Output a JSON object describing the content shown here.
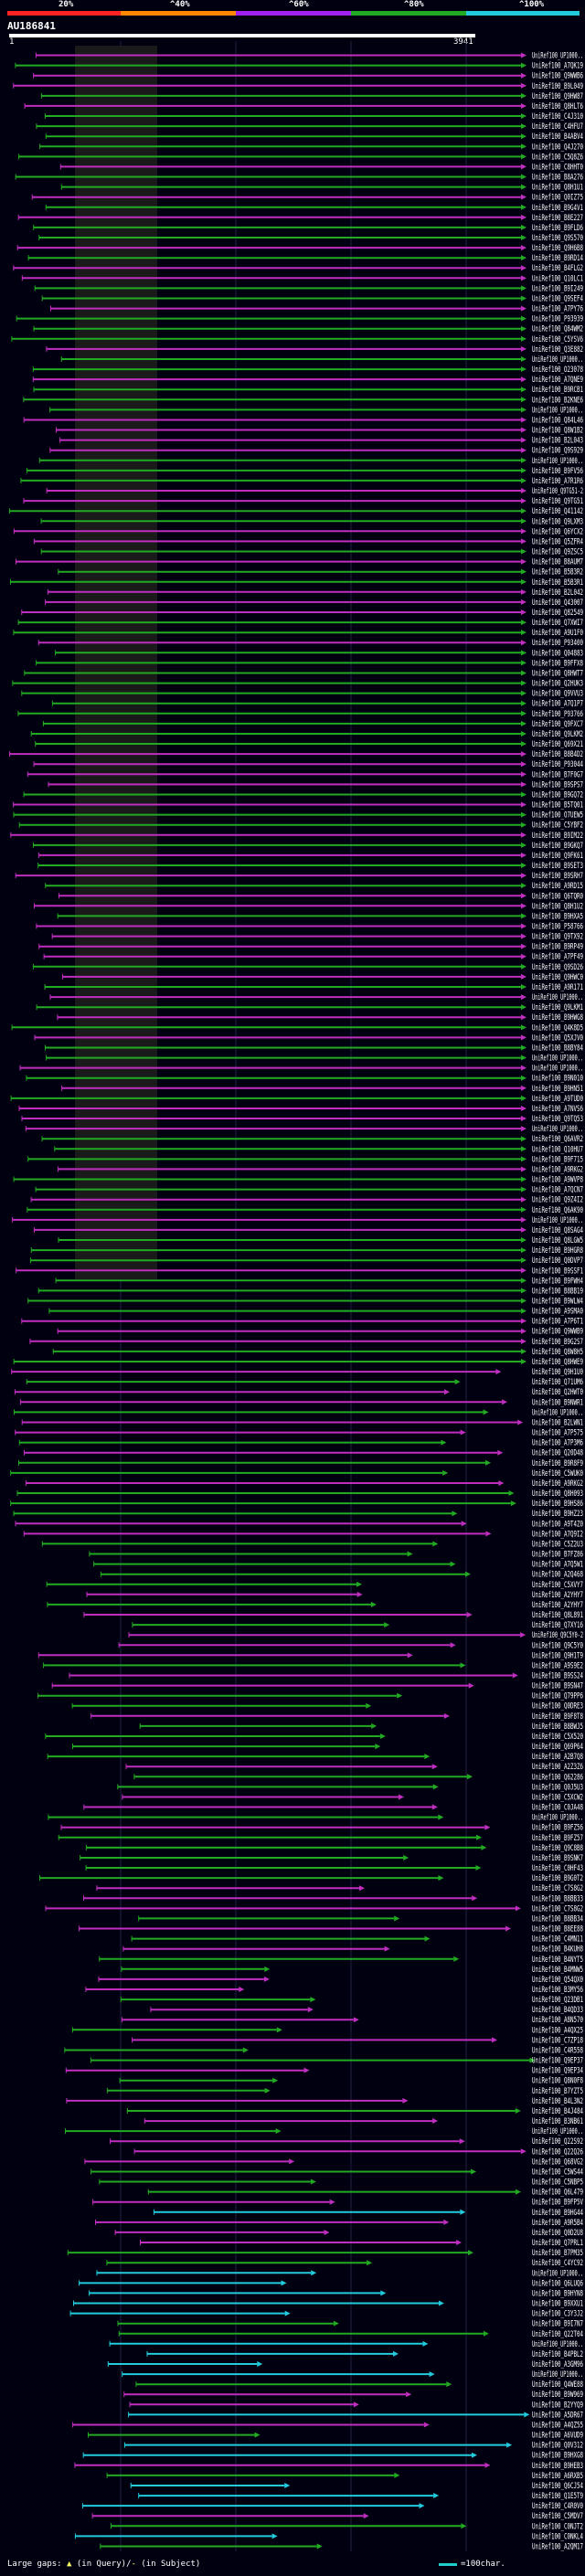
{
  "legend": {
    "labels": [
      "20%",
      "^40%",
      "^60%",
      "^80%",
      "^100%"
    ],
    "colors": [
      "#ff2222",
      "#ff8800",
      "#a020f0",
      "#22aa22",
      "#22ccdd"
    ]
  },
  "query": {
    "name": "AU186841",
    "start": "1",
    "end": "3941"
  },
  "footer": {
    "large_gaps": "Large gaps:",
    "in_query": "(in Query)",
    "slash": "/",
    "in_subject": "(in Subject)",
    "scale_text": "=100char."
  },
  "hits": [
    "UniRef100_UP1000..",
    "UniRef100_A7QK19",
    "UniRef100_Q9WWB6",
    "UniRef100_B9L049",
    "UniRef100_Q9HW87",
    "UniRef100_Q8HLT6",
    "UniRef100_C4J310",
    "UniRef100_C4HFU7",
    "UniRef100_B4ABV4",
    "UniRef100_Q4J270",
    "UniRef100_C5Q8Z6",
    "UniRef100_C8HHT0",
    "UniRef100_B8A276",
    "UniRef100_Q8H1U1",
    "UniRef100_Q0IZ75",
    "UniRef100_B9G4V1",
    "UniRef100_B8E227",
    "UniRef100_B9FLD6",
    "UniRef100_Q9S570",
    "UniRef100_Q9H6B8",
    "UniRef100_B9RD14",
    "UniRef100_B4FLG2",
    "UniRef100_Q10LC1",
    "UniRef100_B9I249",
    "UniRef100_Q9SEF4",
    "UniRef100_A7PY76",
    "UniRef100_P93939",
    "UniRef100_Q84WM2",
    "UniRef100_C5YSV6",
    "UniRef100_Q3E882",
    "UniRef100_UP1000..",
    "UniRef100_O23078",
    "UniRef100_A7QNE9",
    "UniRef100_B9RCB1",
    "UniRef100_B2KNE6",
    "UniRef100_UP1000..",
    "UniRef100_Q84L46",
    "UniRef100_Q8W1B2",
    "UniRef100_B2L043",
    "UniRef100_Q9S929",
    "UniRef100_UP1000..",
    "UniRef100_B9FV56",
    "UniRef100_A7R1R6",
    "UniRef100_Q9TG51-2",
    "UniRef100_Q9TG51",
    "UniRef100_Q41142",
    "UniRef100_Q9LXM3",
    "UniRef100_Q6YCX2",
    "UniRef100_Q5ZFR4",
    "UniRef100_Q9ZSC5",
    "UniRef100_B8AUM7",
    "UniRef100_B5B3R2",
    "UniRef100_B5B3R1",
    "UniRef100_B2L042",
    "UniRef100_Q43007",
    "UniRef100_Q82549",
    "UniRef100_Q7XWI7",
    "UniRef100_A9U1F0",
    "UniRef100_P93400",
    "UniRef100_Q04883",
    "UniRef100_B9FFX8",
    "UniRef100_Q8HWT7",
    "UniRef100_Q2HUK3",
    "UniRef100_Q9VVU3",
    "UniRef100_A7Q1P7",
    "UniRef100_P93766",
    "UniRef100_Q9FXC7",
    "UniRef100_Q9LKM2",
    "UniRef100_Q69X21",
    "UniRef100_B8B4D2",
    "UniRef100_P93044",
    "UniRef100_B7F0G7",
    "UniRef100_B9SPS7",
    "UniRef100_B9GQ72",
    "UniRef100_B5TQ01",
    "UniRef100_O7UEW5",
    "UniRef100_C5YBF2",
    "UniRef100_B9IM22",
    "UniRef100_B9GKQ7",
    "UniRef100_Q9FK61",
    "UniRef100_B9SET3",
    "UniRef100_B9SRH7",
    "UniRef100_A9RD15",
    "UniRef100_Q6TQR0",
    "UniRef100_Q8H1U2",
    "UniRef100_B9HXA5",
    "UniRef100_P58766",
    "UniRef100_Q9TX92",
    "UniRef100_B9RP49",
    "UniRef100_A7PF49",
    "UniRef100_Q9SD26",
    "UniRef100_Q9HWC0",
    "UniRef100_A9R171",
    "UniRef100_UP1000..",
    "UniRef100_Q9LKM1",
    "UniRef100_B9HWG8",
    "UniRef100_Q4K8D5",
    "UniRef100_Q5XJV0",
    "UniRef100_B8BY84",
    "UniRef100_UP1000..",
    "UniRef100_UP1000..",
    "UniRef100_B9N010",
    "UniRef100_B9HN51",
    "UniRef100_A9TUD0",
    "UniRef100_A7NVS6",
    "UniRef100_Q9TQ53",
    "UniRef100_UP1000..",
    "UniRef100_Q6AVR2",
    "UniRef100_Q10HU7",
    "UniRef100_B9F715",
    "UniRef100_A9RKG2",
    "UniRef100_A9WVP8",
    "UniRef100_A7QCN7",
    "UniRef100_Q9Z4I2",
    "UniRef100_Q6AK90",
    "UniRef100_UP1000..",
    "UniRef100_Q8SAG4",
    "UniRef100_Q8LGW5",
    "UniRef100_B9HGR8",
    "UniRef100_Q0DVP7",
    "UniRef100_B9SSF1",
    "UniRef100_B9FWH4",
    "UniRef100_B8BB19",
    "UniRef100_B9WLW4",
    "UniRef100_A9SMA0",
    "UniRef100_A7P6T1",
    "UniRef100_Q9WWB9",
    "UniRef100_B9G2S7",
    "UniRef100_Q8W8H5",
    "UniRef100_Q8HWE9",
    "UniRef100_Q9H1U0",
    "UniRef100_Q71UM6",
    "UniRef100_Q2HWT0",
    "UniRef100_B9NWR1",
    "UniRef100_UP1000..",
    "UniRef100_B2LWN1",
    "UniRef100_A7P575",
    "UniRef100_A7P3M6",
    "UniRef100_Q20D48",
    "UniRef100_B9R8F9",
    "UniRef100_C5WUK0",
    "UniRef100_A9RKG2",
    "UniRef100_Q8H093",
    "UniRef100_B9HS86",
    "UniRef100_B9HZ23",
    "UniRef100_A9T4Z0",
    "UniRef100_A7Q9I2",
    "UniRef100_C5Z2U3",
    "UniRef100_B7FZ86",
    "UniRef100_A7Q5W1",
    "UniRef100_A2Q468",
    "UniRef100_C5XVY7",
    "UniRef100_A2YHY7",
    "UniRef100_A2YHY7",
    "UniRef100_Q8L891",
    "UniRef100_Q7XY16",
    "UniRef100_Q9C5Y0-2",
    "UniRef100_Q9C5Y0",
    "UniRef100_Q9H1T9",
    "UniRef100_A9S9E2",
    "UniRef100_B9SS24",
    "UniRef100_B9SN47",
    "UniRef100_Q79PP6",
    "UniRef100_Q0DRE3",
    "UniRef100_B9F8T8",
    "UniRef100_B8BWJ5",
    "UniRef100_C5X520",
    "UniRef100_Q69P64",
    "UniRef100_A2B7Q8",
    "UniRef100_A2Z3Z6",
    "UniRef100_Q62286",
    "UniRef100_Q0J5U3",
    "UniRef100_C5XCW2",
    "UniRef100_C0JA48",
    "UniRef100_UP1000..",
    "UniRef100_B9FZ56",
    "UniRef100_B9FZ57",
    "UniRef100_Q9C8B8",
    "UniRef100_B9SNK7",
    "UniRef100_C0HF43",
    "UniRef100_B9G0T2",
    "UniRef100_C7S8G2",
    "UniRef100_B8BB33",
    "UniRef100_C7S8G2",
    "UniRef100_B8BB34",
    "UniRef100_B8EE88",
    "UniRef100_C4MN11",
    "UniRef100_B4KUH8",
    "UniRef100_B4NYT5",
    "UniRef100_B4MNW5",
    "UniRef100_Q54QX0",
    "UniRef100_B3MY56",
    "UniRef100_Q23DB1",
    "UniRef100_B4QD33",
    "UniRef100_A8N570",
    "UniRef100_A4QX25",
    "UniRef100_C7ZP18",
    "UniRef100_C4R558",
    "UniRef100_Q9EP37",
    "UniRef100_Q9EP34",
    "UniRef100_Q8N0F8",
    "UniRef100_B7YZT5",
    "UniRef100_B4L3N2",
    "UniRef100_B4J484",
    "UniRef100_B3NB61",
    "UniRef100_UP1000..",
    "UniRef100_Q22S92",
    "UniRef100_Q22Q26",
    "UniRef100_Q68VG2",
    "UniRef100_C5WS44",
    "UniRef100_C5NBP5",
    "UniRef100_Q6L479",
    "UniRef100_B9FP5V",
    "UniRef100_B9HG44",
    "UniRef100_A9R5B4",
    "UniRef100_Q0D2U8",
    "UniRef100_Q7PRL1",
    "UniRef100_B7PM35",
    "UniRef100_C4YC92",
    "UniRef100_UP1000..",
    "UniRef100_Q6LUQ6",
    "UniRef100_B9HYN8",
    "UniRef100_B9XXU1",
    "UniRef100_C3Y3J2",
    "UniRef100_B9I7N7",
    "UniRef100_Q22T04",
    "UniRef100_UP1000..",
    "UniRef100_B4PBL2",
    "UniRef100_A3GM96",
    "UniRef100_UP1000..",
    "UniRef100_Q4WE88",
    "UniRef100_B9W969",
    "UniRef100_B2YYQ9",
    "UniRef100_A5DR67",
    "UniRef100_A4QZ55",
    "UniRef100_A6VUD9",
    "UniRef100_Q0V312",
    "UniRef100_B9HXG8",
    "UniRef100_B9HEB3",
    "UniRef100_A6RXB5",
    "UniRef100_Q6CJ54",
    "UniRef100_Q1E5T9",
    "UniRef100_C4R0V0",
    "UniRef100_C5MDV7",
    "UniRef100_C0NJT2",
    "UniRef100_C0NKL4",
    "UniRef100_A2QM17"
  ]
}
